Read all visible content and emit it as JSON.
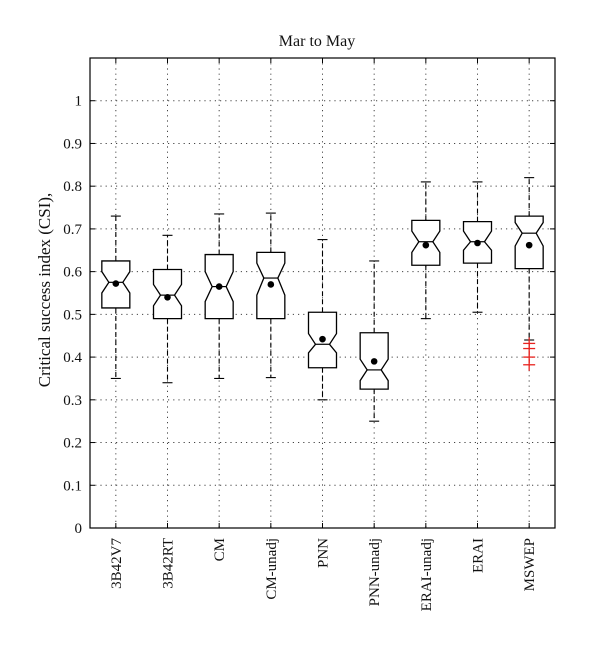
{
  "chart_data": {
    "type": "boxplot",
    "title": "Mar to May",
    "ylabel": "Critical success index (CSI),",
    "xlabel": "",
    "ylim": [
      0,
      1.1
    ],
    "yticks": [
      "0",
      "0.1",
      "0.2",
      "0.3",
      "0.4",
      "0.5",
      "0.6",
      "0.7",
      "0.8",
      "0.9",
      "1"
    ],
    "grid": true,
    "categories": [
      "3B42V7",
      "3B42RT",
      "CM",
      "CM-unadj",
      "PNN",
      "PNN-unadj",
      "ERAI-unadj",
      "ERAI",
      "MSWEP"
    ],
    "boxes": [
      {
        "whisker_low": 0.35,
        "q1": 0.515,
        "notch_low": 0.55,
        "median": 0.575,
        "notch_high": 0.6,
        "q3": 0.625,
        "whisker_high": 0.73,
        "mean": 0.572,
        "outliers": []
      },
      {
        "whisker_low": 0.34,
        "q1": 0.49,
        "notch_low": 0.52,
        "median": 0.545,
        "notch_high": 0.57,
        "q3": 0.605,
        "whisker_high": 0.685,
        "mean": 0.54,
        "outliers": []
      },
      {
        "whisker_low": 0.35,
        "q1": 0.49,
        "notch_low": 0.53,
        "median": 0.565,
        "notch_high": 0.6,
        "q3": 0.64,
        "whisker_high": 0.735,
        "mean": 0.565,
        "outliers": []
      },
      {
        "whisker_low": 0.352,
        "q1": 0.49,
        "notch_low": 0.545,
        "median": 0.585,
        "notch_high": 0.62,
        "q3": 0.645,
        "whisker_high": 0.737,
        "mean": 0.57,
        "outliers": []
      },
      {
        "whisker_low": 0.3,
        "q1": 0.375,
        "notch_low": 0.41,
        "median": 0.43,
        "notch_high": 0.455,
        "q3": 0.505,
        "whisker_high": 0.675,
        "mean": 0.442,
        "outliers": []
      },
      {
        "whisker_low": 0.25,
        "q1": 0.325,
        "notch_low": 0.345,
        "median": 0.37,
        "notch_high": 0.395,
        "q3": 0.457,
        "whisker_high": 0.625,
        "mean": 0.39,
        "outliers": []
      },
      {
        "whisker_low": 0.49,
        "q1": 0.615,
        "notch_low": 0.645,
        "median": 0.67,
        "notch_high": 0.695,
        "q3": 0.72,
        "whisker_high": 0.81,
        "mean": 0.662,
        "outliers": []
      },
      {
        "whisker_low": 0.505,
        "q1": 0.62,
        "notch_low": 0.65,
        "median": 0.67,
        "notch_high": 0.695,
        "q3": 0.717,
        "whisker_high": 0.81,
        "mean": 0.667,
        "outliers": []
      },
      {
        "whisker_low": 0.44,
        "q1": 0.607,
        "notch_low": 0.66,
        "median": 0.69,
        "notch_high": 0.715,
        "q3": 0.73,
        "whisker_high": 0.82,
        "mean": 0.662,
        "outliers": [
          0.432,
          0.42,
          0.4,
          0.382
        ]
      }
    ],
    "outlier_color": "#e8231f",
    "box_color": "#000000",
    "mean_marker_color": "#000000"
  }
}
